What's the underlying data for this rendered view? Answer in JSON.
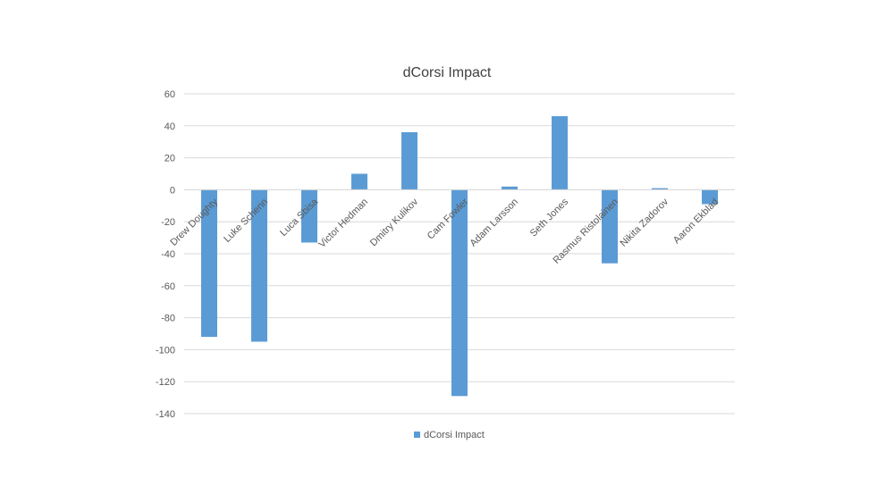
{
  "chart_data": {
    "type": "bar",
    "title": "dCorsi Impact",
    "categories": [
      "Drew Doughty",
      "Luke Schenn",
      "Luca Sbisa",
      "Victor Hedman",
      "Dmitry Kulikov",
      "Cam Fowler",
      "Adam Larsson",
      "Seth Jones",
      "Rasmus Ristolainen",
      "Nikita Zadorov",
      "Aaron Ekblad"
    ],
    "series": [
      {
        "name": "dCorsi Impact",
        "values": [
          -92,
          -95,
          -33,
          10,
          36,
          -129,
          2,
          46,
          -46,
          1,
          -9
        ]
      }
    ],
    "ylim": [
      -140,
      60
    ],
    "yticks": [
      60,
      40,
      20,
      0,
      -20,
      -40,
      -60,
      -80,
      -100,
      -120,
      -140
    ],
    "grid": true,
    "legend_position": "bottom",
    "colors": {
      "bar": "#5b9bd5",
      "grid": "#d9d9d9",
      "text": "#595959"
    }
  }
}
